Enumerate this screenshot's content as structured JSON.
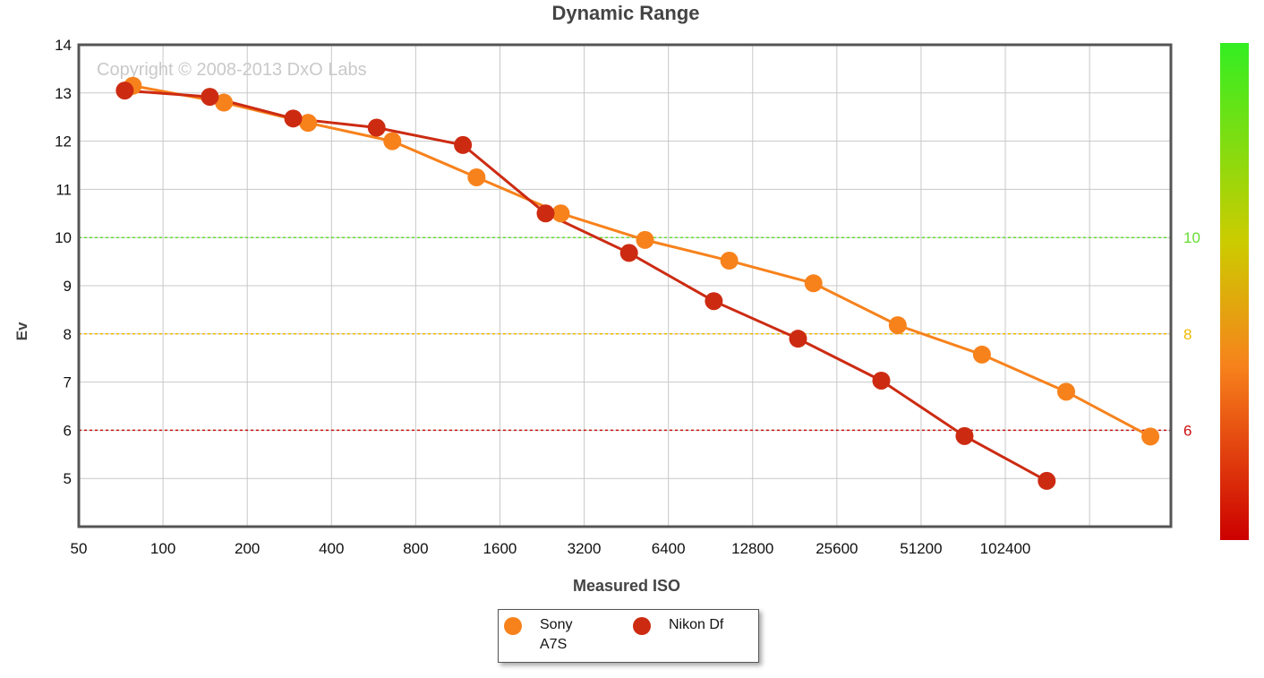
{
  "chart_data": {
    "type": "line",
    "title": "Dynamic Range",
    "xlabel": "Measured ISO",
    "ylabel": "Ev",
    "watermark": "Copyright © 2008-2013 DxO Labs",
    "x_scale": "log2",
    "x_ticks": [
      "50",
      "100",
      "200",
      "400",
      "800",
      "1600",
      "3200",
      "6400",
      "12800",
      "25600",
      "51200",
      "102400"
    ],
    "y_ticks": [
      14,
      13,
      12,
      11,
      10,
      9,
      8,
      7,
      6,
      5
    ],
    "xlim": [
      50,
      400000
    ],
    "ylim": [
      4,
      14
    ],
    "grid": true,
    "reference_lines": [
      {
        "value": 10,
        "label": "10",
        "color": "#66dd33"
      },
      {
        "value": 8,
        "label": "8",
        "color": "#f0b800"
      },
      {
        "value": 6,
        "label": "6",
        "color": "#cc1111"
      }
    ],
    "series": [
      {
        "name": "Sony A7S",
        "color": "#f7821c",
        "x": [
          78,
          165,
          330,
          660,
          1320,
          2640,
          5280,
          10560,
          21120,
          42240,
          84480,
          168960,
          337920
        ],
        "y": [
          13.15,
          12.8,
          12.38,
          12.0,
          11.25,
          10.5,
          9.95,
          9.52,
          9.05,
          8.18,
          7.57,
          6.8,
          5.87
        ]
      },
      {
        "name": "Nikon Df",
        "color": "#cc2b12",
        "x": [
          73,
          147,
          292,
          580,
          1180,
          2330,
          4630,
          9300,
          18600,
          36900,
          73200,
          144000
        ],
        "y": [
          13.05,
          12.92,
          12.47,
          12.28,
          11.92,
          10.5,
          9.68,
          8.68,
          7.9,
          7.03,
          5.88,
          4.95
        ]
      }
    ],
    "legend": {
      "position": "bottom-center"
    },
    "colorbar": {
      "position": "right",
      "colors": [
        "#33ee22",
        "#ddcc00",
        "#f7821c",
        "#cc0000"
      ]
    }
  }
}
